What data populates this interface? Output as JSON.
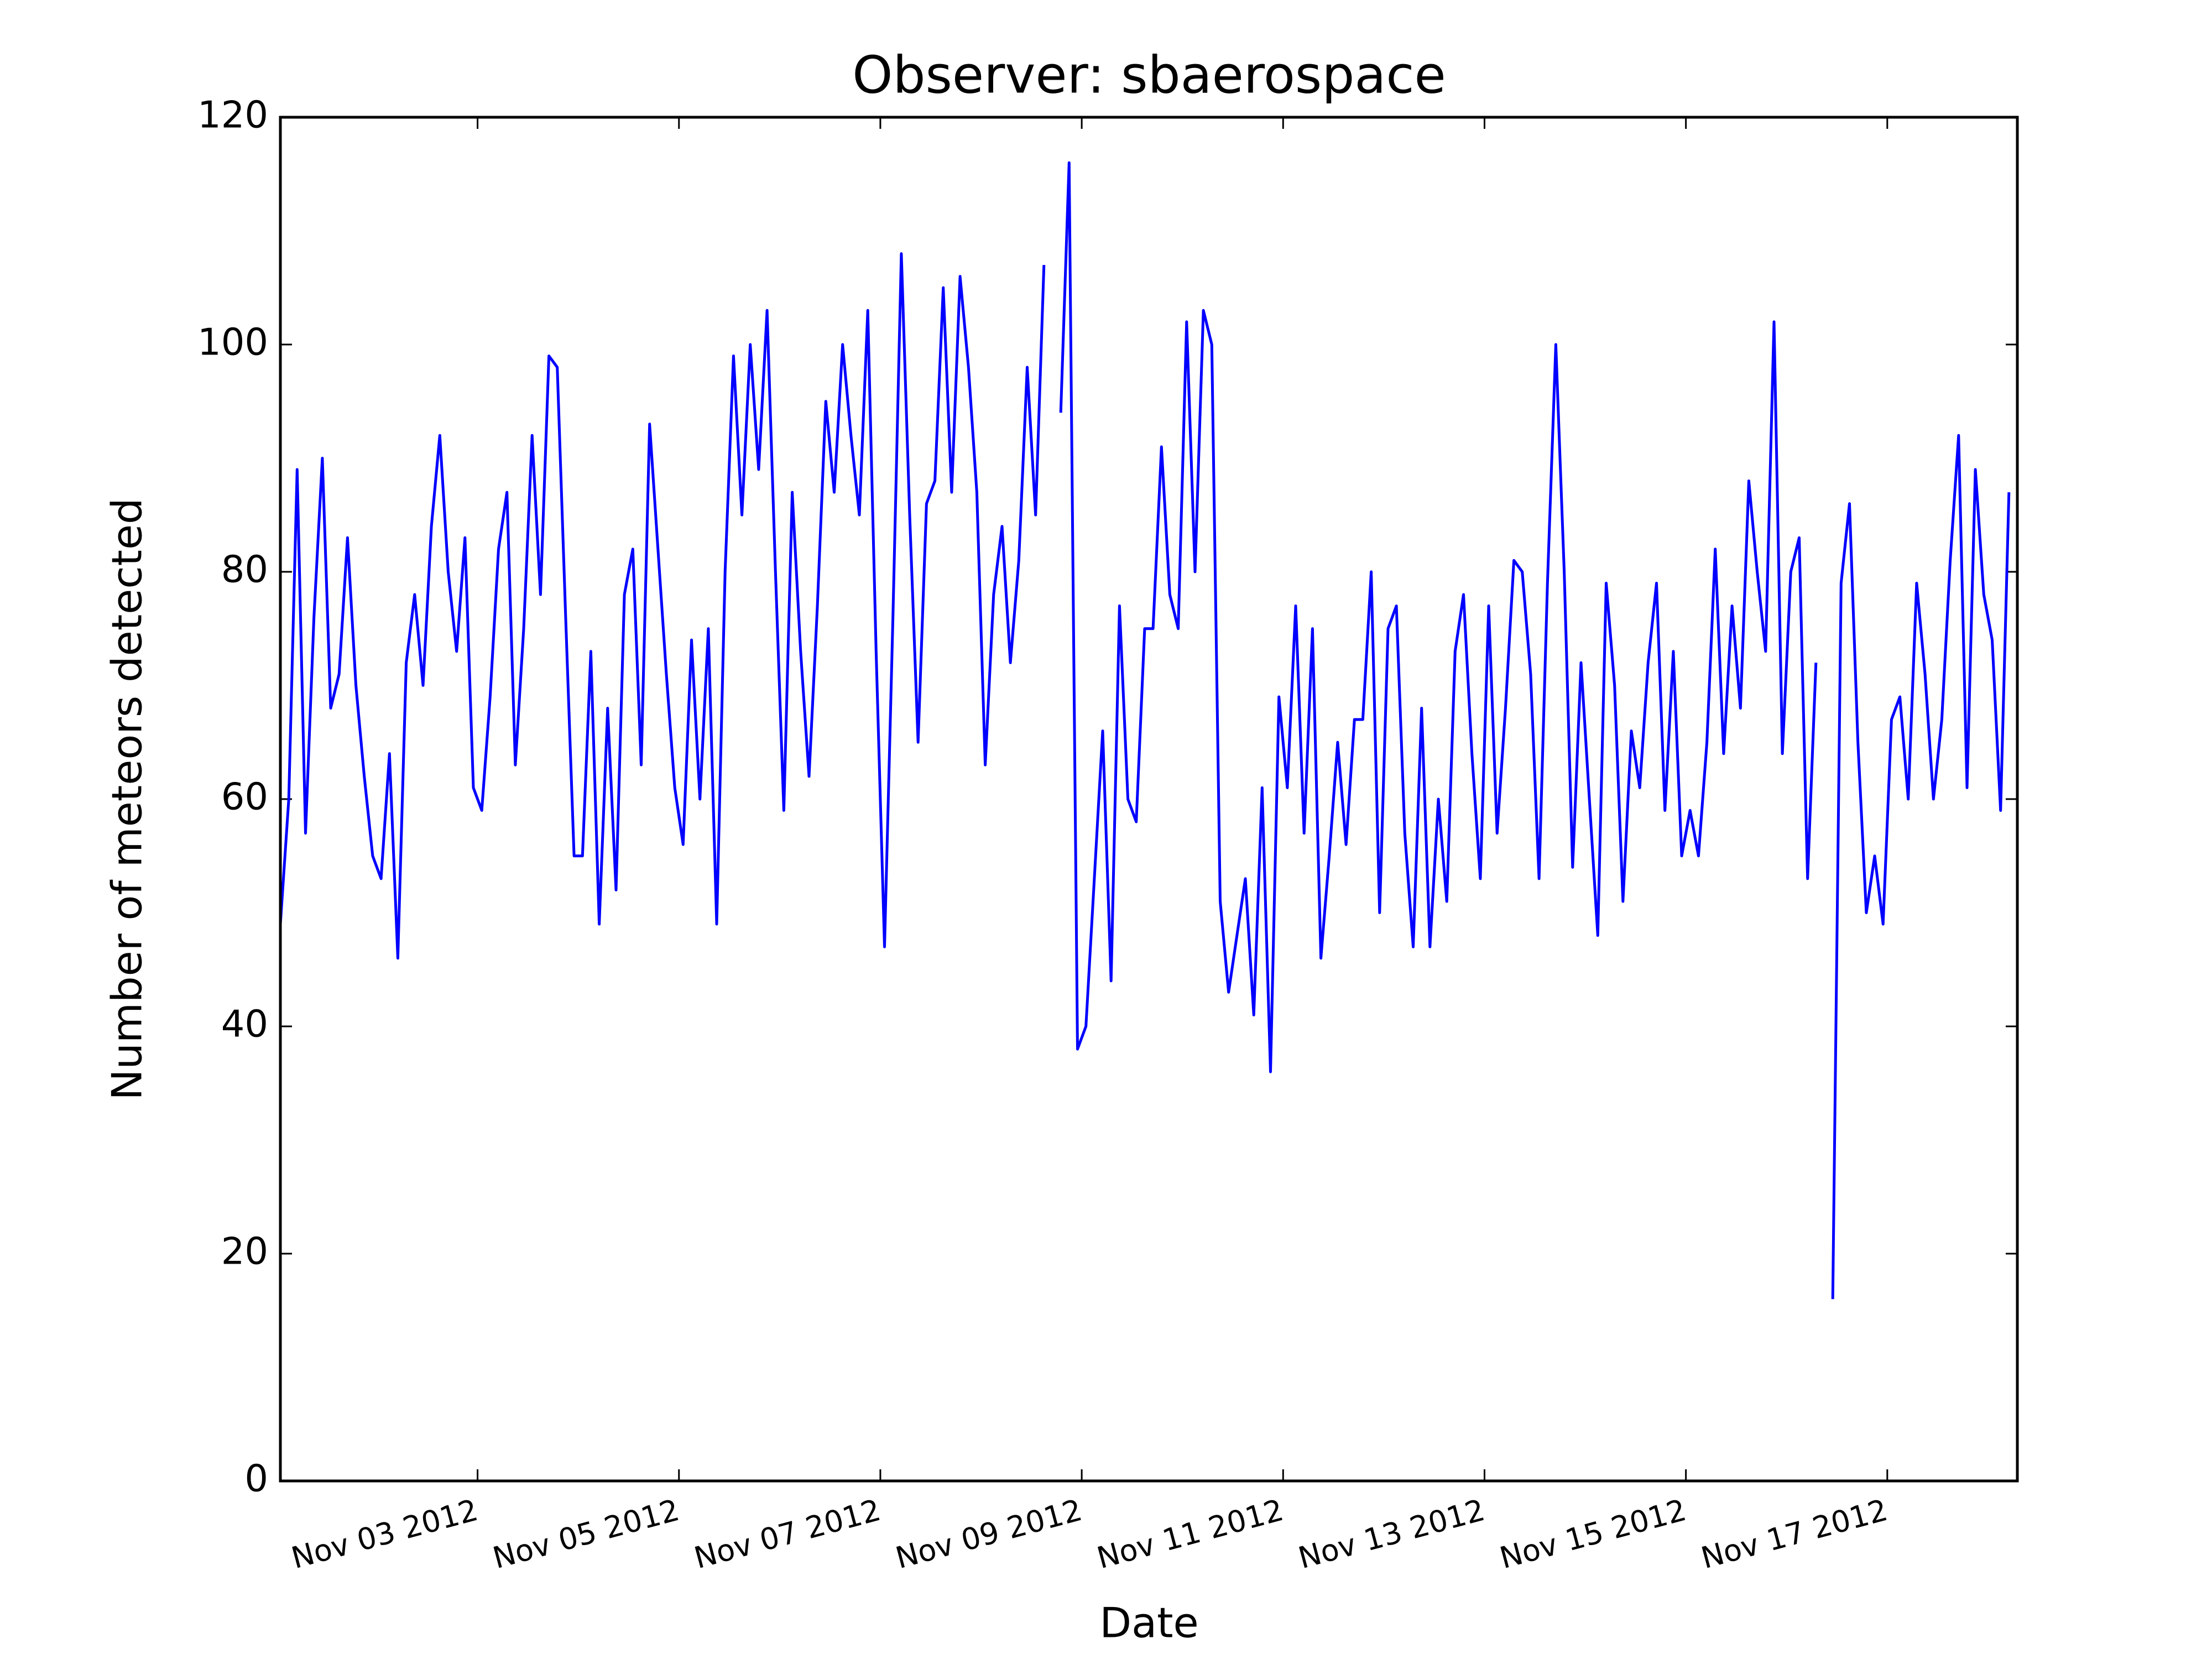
{
  "chart_data": {
    "type": "line",
    "title": "Observer: sbaerospace",
    "x_label": "Date",
    "y_label": "Number of meteors detected",
    "xlim": [
      "2012-11-01T01:00",
      "2012-11-18T07:00"
    ],
    "xticks": [
      {
        "value": "2012-11-03",
        "label": "Nov 03 2012"
      },
      {
        "value": "2012-11-05",
        "label": "Nov 05 2012"
      },
      {
        "value": "2012-11-07",
        "label": "Nov 07 2012"
      },
      {
        "value": "2012-11-09",
        "label": "Nov 09 2012"
      },
      {
        "value": "2012-11-11",
        "label": "Nov 11 2012"
      },
      {
        "value": "2012-11-13",
        "label": "Nov 13 2012"
      },
      {
        "value": "2012-11-15",
        "label": "Nov 15 2012"
      },
      {
        "value": "2012-11-17",
        "label": "Nov 17 2012"
      }
    ],
    "ylim": [
      0,
      120
    ],
    "yticks": [
      0,
      20,
      40,
      60,
      80,
      100,
      120
    ],
    "grid": false,
    "start": "2012-11-01T01:00",
    "step_hours": 2,
    "series": [
      {
        "name": "sbaerospace",
        "color": "#0000ff",
        "values": [
          49,
          60,
          89,
          57,
          76,
          90,
          68,
          71,
          83,
          70,
          62,
          55,
          53,
          64,
          46,
          72,
          78,
          70,
          84,
          92,
          80,
          73,
          83,
          61,
          59,
          69,
          82,
          87,
          63,
          75,
          92,
          78,
          99,
          98,
          76,
          55,
          55,
          73,
          49,
          68,
          52,
          78,
          82,
          63,
          93,
          82,
          71,
          61,
          56,
          74,
          60,
          75,
          49,
          80,
          99,
          85,
          100,
          89,
          103,
          80,
          59,
          87,
          73,
          62,
          77,
          95,
          87,
          100,
          92,
          85,
          103,
          73,
          47,
          76,
          108,
          85,
          65,
          86,
          88,
          105,
          87,
          106,
          98,
          87,
          63,
          78,
          84,
          72,
          81,
          98,
          85,
          107,
          null,
          94,
          116,
          38,
          40,
          53,
          66,
          44,
          77,
          60,
          58,
          75,
          75,
          91,
          78,
          75,
          102,
          80,
          103,
          100,
          51,
          43,
          48,
          53,
          41,
          61,
          36,
          69,
          61,
          77,
          57,
          75,
          46,
          55,
          65,
          56,
          67,
          67,
          80,
          50,
          75,
          77,
          57,
          47,
          68,
          47,
          60,
          51,
          73,
          78,
          64,
          53,
          77,
          57,
          68,
          81,
          80,
          71,
          53,
          79,
          100,
          80,
          54,
          72,
          60,
          48,
          79,
          70,
          51,
          66,
          61,
          72,
          79,
          59,
          73,
          55,
          59,
          55,
          65,
          82,
          64,
          77,
          68,
          88,
          80,
          73,
          102,
          64,
          80,
          83,
          53,
          72,
          null,
          16,
          79,
          86,
          65,
          50,
          55,
          49,
          67,
          69,
          60,
          79,
          71,
          60,
          67,
          81,
          92,
          61,
          89,
          78,
          74,
          59,
          87
        ]
      }
    ]
  }
}
